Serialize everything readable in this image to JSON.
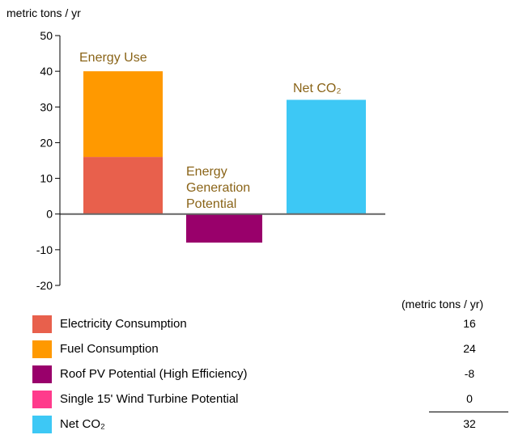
{
  "chart_data": {
    "type": "bar",
    "title": "",
    "ylabel": "metric tons / yr",
    "xlabel": "",
    "ylim": [
      -20,
      50
    ],
    "yticks": [
      50,
      40,
      30,
      20,
      10,
      0,
      -10,
      -20
    ],
    "grid": false,
    "categories": [
      "Energy Use",
      "Energy Generation Potential",
      "Net CO₂"
    ],
    "category_label_lines": [
      [
        "Energy Use"
      ],
      [
        "Energy",
        "Generation",
        "Potential"
      ],
      [
        "Net CO₂"
      ]
    ],
    "series": [
      {
        "name": "Electricity Consumption",
        "color": "#e8604c",
        "values": [
          16,
          0,
          0
        ]
      },
      {
        "name": "Fuel Consumption",
        "color": "#ff9900",
        "values": [
          24,
          0,
          0
        ]
      },
      {
        "name": "Roof PV Potential (High Efficiency)",
        "color": "#99006b",
        "values": [
          0,
          -8,
          0
        ]
      },
      {
        "name": "Single 15' Wind Turbine Potential",
        "color": "#ff3b8c",
        "values": [
          0,
          0,
          0
        ]
      },
      {
        "name": "Net CO₂",
        "color": "#3dc8f5",
        "values": [
          0,
          0,
          32
        ]
      }
    ],
    "legend_placement": "bottom",
    "legend_header": "(metric tons / yr)",
    "legend_values": [
      "16",
      "24",
      "-8",
      "0",
      "32"
    ]
  },
  "colors": {
    "axis": "#000000",
    "zero_line": "#666666",
    "bar_label": "#8a6418"
  }
}
